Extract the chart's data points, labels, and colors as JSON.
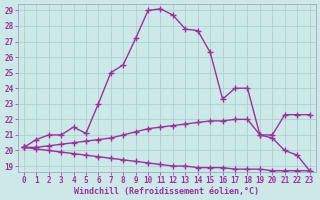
{
  "xlabel": "Windchill (Refroidissement éolien,°C)",
  "bg_color": "#cde8e8",
  "line_color": "#993399",
  "grid_color": "#aacccc",
  "spine_color": "#9999bb",
  "xlim": [
    -0.5,
    23.5
  ],
  "ylim": [
    18.6,
    29.4
  ],
  "yticks": [
    19,
    20,
    21,
    22,
    23,
    24,
    25,
    26,
    27,
    28,
    29
  ],
  "xticks": [
    0,
    1,
    2,
    3,
    4,
    5,
    6,
    7,
    8,
    9,
    10,
    11,
    12,
    13,
    14,
    15,
    16,
    17,
    18,
    19,
    20,
    21,
    22,
    23
  ],
  "line1_x": [
    0,
    1,
    2,
    3,
    4,
    5,
    6,
    7,
    8,
    9,
    10,
    11,
    12,
    13,
    14,
    15,
    16,
    17,
    18,
    19,
    20,
    21,
    22,
    23
  ],
  "line1_y": [
    20.2,
    20.7,
    21.0,
    21.0,
    21.5,
    21.1,
    23.0,
    25.0,
    25.5,
    27.2,
    29.0,
    29.1,
    28.7,
    27.8,
    27.7,
    26.3,
    23.3,
    24.0,
    24.0,
    21.0,
    20.8,
    20.0,
    19.7,
    18.7
  ],
  "line2_x": [
    0,
    1,
    2,
    3,
    4,
    5,
    6,
    7,
    8,
    9,
    10,
    11,
    12,
    13,
    14,
    15,
    16,
    17,
    18,
    19,
    20,
    21,
    22,
    23
  ],
  "line2_y": [
    20.2,
    20.2,
    20.3,
    20.4,
    20.5,
    20.6,
    20.7,
    20.8,
    21.0,
    21.2,
    21.4,
    21.5,
    21.6,
    21.7,
    21.8,
    21.9,
    21.9,
    22.0,
    22.0,
    21.0,
    21.0,
    22.3,
    22.3,
    22.3
  ],
  "line3_x": [
    0,
    1,
    2,
    3,
    4,
    5,
    6,
    7,
    8,
    9,
    10,
    11,
    12,
    13,
    14,
    15,
    16,
    17,
    18,
    19,
    20,
    21,
    22,
    23
  ],
  "line3_y": [
    20.2,
    20.1,
    20.0,
    19.9,
    19.8,
    19.7,
    19.6,
    19.5,
    19.4,
    19.3,
    19.2,
    19.1,
    19.0,
    19.0,
    18.9,
    18.9,
    18.9,
    18.8,
    18.8,
    18.8,
    18.7,
    18.7,
    18.7,
    18.7
  ],
  "marker": "+",
  "markersize": 4,
  "markeredgewidth": 1.0,
  "linewidth": 1.0,
  "xlabel_fontsize": 6,
  "tick_fontsize": 5.5
}
